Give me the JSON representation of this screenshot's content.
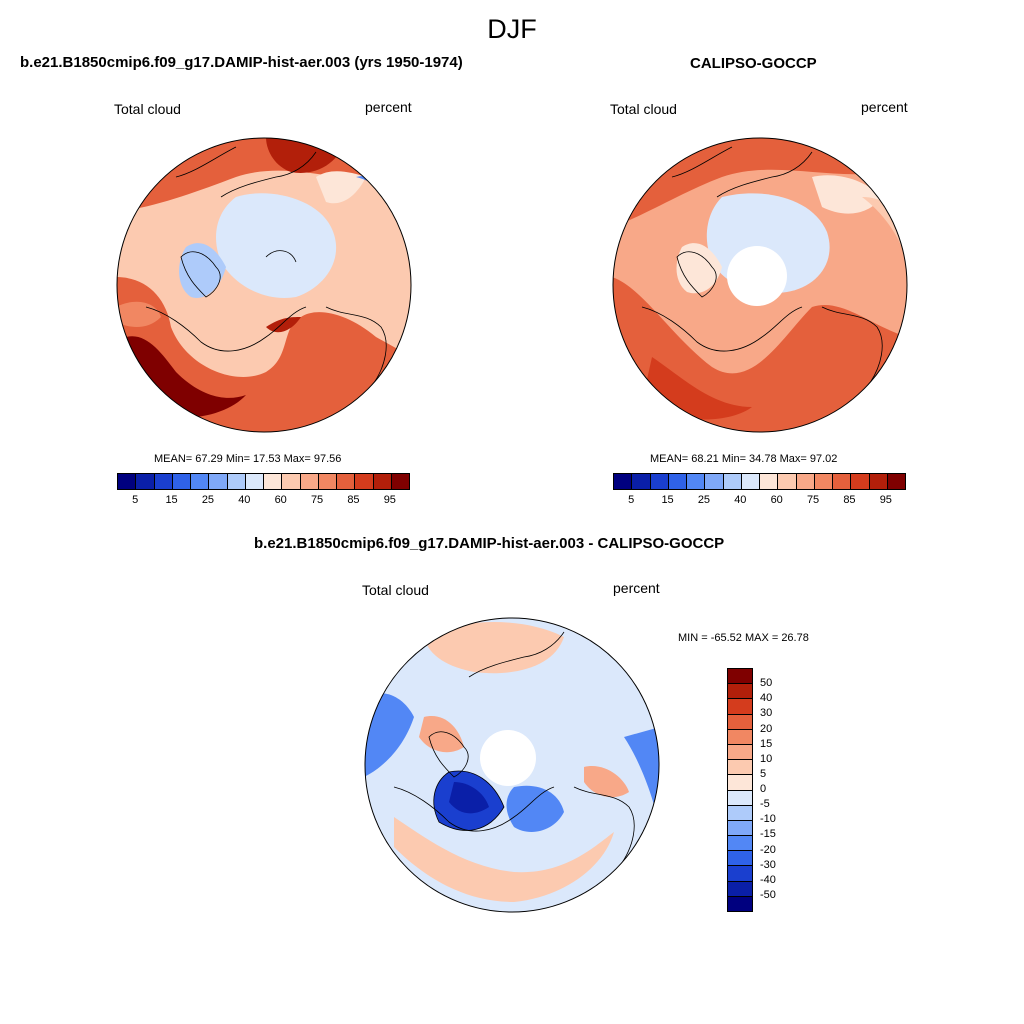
{
  "page_title": "DJF",
  "colors": {
    "abs_scale": [
      "#00007f",
      "#0a1fa8",
      "#1a3fcf",
      "#2f62e8",
      "#5287f5",
      "#7fa8f8",
      "#aecbfa",
      "#dbe8fb",
      "#fde6d8",
      "#fccab0",
      "#f8a888",
      "#f18762",
      "#e4603c",
      "#d43c1d",
      "#b21f0a",
      "#7f0000"
    ],
    "diff_scale": [
      "#00007f",
      "#0a1fa8",
      "#1a3fcf",
      "#2f62e8",
      "#5287f5",
      "#7fa8f8",
      "#aecbfa",
      "#dbe8fb",
      "#fde6d8",
      "#fccab0",
      "#f8a888",
      "#f18762",
      "#e4603c",
      "#d43c1d",
      "#b21f0a",
      "#7f0000"
    ]
  },
  "panels": {
    "model": {
      "title": "b.e21.B1850cmip6.f09_g17.DAMIP-hist-aer.003 (yrs 1950-1974)",
      "variable": "Total cloud",
      "units": "percent",
      "stats": "MEAN=  67.29  Min=  17.53  Max=  97.56",
      "colorbar_ticks": [
        "5",
        "15",
        "25",
        "40",
        "60",
        "75",
        "85",
        "95"
      ]
    },
    "obs": {
      "title": "CALIPSO-GOCCP",
      "variable": "Total cloud",
      "units": "percent",
      "stats": "MEAN=  68.21  Min=  34.78  Max=  97.02",
      "colorbar_ticks": [
        "5",
        "15",
        "25",
        "40",
        "60",
        "75",
        "85",
        "95"
      ]
    },
    "diff": {
      "title": "b.e21.B1850cmip6.f09_g17.DAMIP-hist-aer.003 - CALIPSO-GOCCP",
      "variable": "Total cloud",
      "units": "percent",
      "stats": "MIN = -65.52 MAX =  26.78",
      "colorbar_ticks": [
        "50",
        "40",
        "30",
        "20",
        "15",
        "10",
        "5",
        "0",
        "-5",
        "-10",
        "-15",
        "-20",
        "-30",
        "-40",
        "-50"
      ]
    }
  }
}
